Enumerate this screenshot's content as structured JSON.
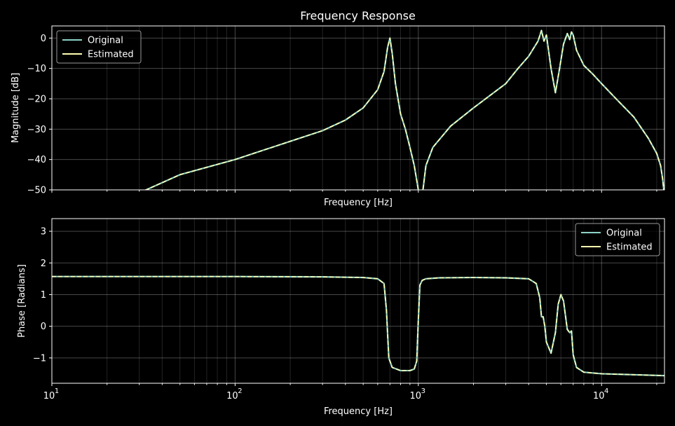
{
  "chart_data": [
    {
      "type": "line",
      "title": "Frequency Response",
      "xlabel": "Frequency [Hz]",
      "ylabel": "Magnitude [dB]",
      "xscale": "log",
      "xlim": [
        10,
        22050
      ],
      "ylim": [
        -50,
        4
      ],
      "yticks": [
        0,
        -10,
        -20,
        -30,
        -40,
        -50
      ],
      "xtick_labels_visible": false,
      "grid": true,
      "legend": "upper-left",
      "series": [
        {
          "name": "Original",
          "color": "#8dd3c7",
          "x": [
            30,
            50,
            100,
            200,
            300,
            400,
            500,
            600,
            650,
            680,
            700,
            720,
            750,
            800,
            850,
            900,
            950,
            1000,
            1020,
            1040,
            1060,
            1100,
            1200,
            1500,
            2000,
            3000,
            3500,
            4000,
            4500,
            4700,
            4850,
            5000,
            5300,
            5600,
            5900,
            6200,
            6500,
            6700,
            6850,
            7000,
            7300,
            8000,
            9000,
            10000,
            12000,
            15000,
            18000,
            20000,
            21000,
            21500,
            22050
          ],
          "y": [
            -51,
            -45,
            -40,
            -34,
            -30.5,
            -27,
            -23,
            -17,
            -11,
            -3,
            0,
            -5,
            -15,
            -25,
            -30,
            -36,
            -42,
            -50,
            -56,
            -56,
            -50,
            -42,
            -36,
            -29,
            -23,
            -15,
            -10,
            -6,
            -1,
            2.5,
            -1,
            1,
            -10,
            -18,
            -10,
            -2,
            1.5,
            -0.5,
            2,
            1,
            -4,
            -9,
            -12,
            -15,
            -20,
            -26,
            -33,
            -38,
            -42,
            -46,
            -52
          ]
        },
        {
          "name": "Estimated",
          "color": "#ffffb3",
          "x": [
            30,
            50,
            100,
            200,
            300,
            400,
            500,
            600,
            650,
            680,
            700,
            720,
            750,
            800,
            850,
            900,
            950,
            1000,
            1020,
            1040,
            1060,
            1100,
            1200,
            1500,
            2000,
            3000,
            3500,
            4000,
            4500,
            4700,
            4850,
            5000,
            5300,
            5600,
            5900,
            6200,
            6500,
            6700,
            6850,
            7000,
            7300,
            8000,
            9000,
            10000,
            12000,
            15000,
            18000,
            20000,
            21000,
            21500,
            22050
          ],
          "y": [
            -51,
            -45,
            -40,
            -34,
            -30.5,
            -27,
            -23,
            -17,
            -11,
            -3,
            0,
            -5,
            -15,
            -25,
            -30,
            -36,
            -42,
            -50,
            -56,
            -56,
            -50,
            -42,
            -36,
            -29,
            -23,
            -15,
            -10,
            -6,
            -1,
            2.5,
            -1,
            1,
            -10,
            -18,
            -10,
            -2,
            1.5,
            -0.5,
            2,
            1,
            -4,
            -9,
            -12,
            -15,
            -20,
            -26,
            -33,
            -38,
            -42,
            -46,
            -52
          ]
        }
      ]
    },
    {
      "type": "line",
      "title": "",
      "xlabel": "Frequency [Hz]",
      "ylabel": "Phase [Radians]",
      "xscale": "log",
      "xlim": [
        10,
        22050
      ],
      "ylim": [
        -1.8,
        3.4
      ],
      "yticks": [
        3,
        2,
        1,
        0,
        -1
      ],
      "xticks": [
        10,
        100,
        1000,
        10000
      ],
      "xtick_labels": [
        "10",
        "2",
        "3",
        "4"
      ],
      "grid": true,
      "legend": "upper-right",
      "series": [
        {
          "name": "Original",
          "color": "#8dd3c7",
          "x": [
            10,
            100,
            300,
            500,
            600,
            650,
            670,
            690,
            720,
            800,
            900,
            950,
            980,
            1000,
            1020,
            1050,
            1100,
            1300,
            2000,
            3000,
            4000,
            4400,
            4600,
            4700,
            4800,
            4900,
            5000,
            5300,
            5600,
            5800,
            6000,
            6200,
            6500,
            6700,
            6850,
            7000,
            7300,
            8000,
            10000,
            15000,
            22050
          ],
          "y": [
            1.57,
            1.57,
            1.56,
            1.54,
            1.5,
            1.35,
            0.5,
            -1.0,
            -1.3,
            -1.4,
            -1.4,
            -1.35,
            -1.1,
            0.2,
            1.3,
            1.45,
            1.5,
            1.53,
            1.54,
            1.53,
            1.5,
            1.35,
            0.9,
            0.3,
            0.3,
            0.0,
            -0.5,
            -0.85,
            -0.2,
            0.7,
            1.0,
            0.8,
            -0.1,
            -0.2,
            -0.15,
            -0.9,
            -1.3,
            -1.45,
            -1.5,
            -1.53,
            -1.56
          ]
        },
        {
          "name": "Estimated",
          "color": "#ffffb3",
          "x": [
            10,
            100,
            300,
            500,
            600,
            650,
            670,
            690,
            720,
            800,
            900,
            950,
            980,
            1000,
            1020,
            1050,
            1100,
            1300,
            2000,
            3000,
            4000,
            4400,
            4600,
            4700,
            4800,
            4900,
            5000,
            5300,
            5600,
            5800,
            6000,
            6200,
            6500,
            6700,
            6850,
            7000,
            7300,
            8000,
            10000,
            15000,
            22050
          ],
          "y": [
            1.57,
            1.57,
            1.56,
            1.54,
            1.5,
            1.35,
            0.5,
            -1.0,
            -1.3,
            -1.4,
            -1.4,
            -1.35,
            -1.1,
            0.2,
            1.3,
            1.45,
            1.5,
            1.53,
            1.54,
            1.53,
            1.5,
            1.35,
            0.9,
            0.3,
            0.3,
            0.0,
            -0.5,
            -0.85,
            -0.2,
            0.7,
            1.0,
            0.8,
            -0.1,
            -0.2,
            -0.15,
            -0.9,
            -1.3,
            -1.45,
            -1.5,
            -1.53,
            -1.56
          ]
        }
      ]
    }
  ]
}
